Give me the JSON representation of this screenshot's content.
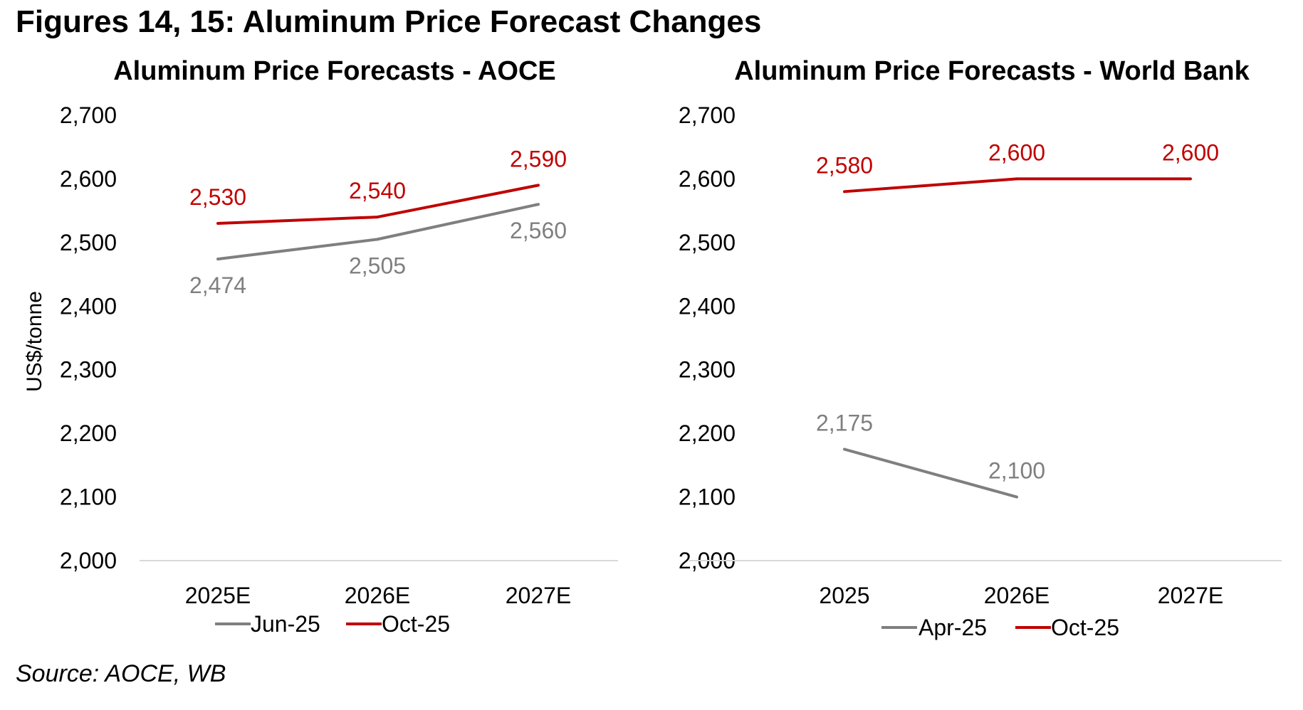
{
  "figure_title": "Figures 14, 15: Aluminum Price Forecast Changes",
  "source": "Source: AOCE, WB",
  "colors": {
    "series_old": "#7f7f7f",
    "series_new": "#c00000",
    "axis": "#d9d9d9"
  },
  "chart_data": [
    {
      "type": "line",
      "title": "Aluminum Price Forecasts - AOCE",
      "xlabel": "",
      "ylabel": "US$/tonne",
      "categories": [
        "2025E",
        "2026E",
        "2027E"
      ],
      "ylim": [
        2000,
        2700
      ],
      "yticks": [
        2000,
        2100,
        2200,
        2300,
        2400,
        2500,
        2600,
        2700
      ],
      "ytick_labels": [
        "2,000",
        "2,100",
        "2,200",
        "2,300",
        "2,400",
        "2,500",
        "2,600",
        "2,700"
      ],
      "grid": false,
      "legend": "bottom",
      "series": [
        {
          "name": "Jun-25",
          "color": "#7f7f7f",
          "values": [
            2474,
            2505,
            2560
          ],
          "labels": [
            "2,474",
            "2,505",
            "2,560"
          ],
          "label_pos": "below"
        },
        {
          "name": "Oct-25",
          "color": "#c00000",
          "values": [
            2530,
            2540,
            2590
          ],
          "labels": [
            "2,530",
            "2,540",
            "2,590"
          ],
          "label_pos": "above"
        }
      ]
    },
    {
      "type": "line",
      "title": "Aluminum Price Forecasts - World Bank",
      "xlabel": "",
      "ylabel": "",
      "categories": [
        "2025",
        "2026E",
        "2027E"
      ],
      "ylim": [
        2000,
        2700
      ],
      "yticks": [
        2000,
        2100,
        2200,
        2300,
        2400,
        2500,
        2600,
        2700
      ],
      "ytick_labels": [
        "2,000",
        "2,100",
        "2,200",
        "2,300",
        "2,400",
        "2,500",
        "2,600",
        "2,700"
      ],
      "grid": false,
      "legend": "bottom",
      "series": [
        {
          "name": "Apr-25",
          "color": "#7f7f7f",
          "values": [
            2175,
            2100,
            null
          ],
          "labels": [
            "2,175",
            "2,100",
            null
          ],
          "label_pos": "above"
        },
        {
          "name": "Oct-25",
          "color": "#c00000",
          "values": [
            2580,
            2600,
            2600
          ],
          "labels": [
            "2,580",
            "2,600",
            "2,600"
          ],
          "label_pos": "above"
        }
      ]
    }
  ]
}
